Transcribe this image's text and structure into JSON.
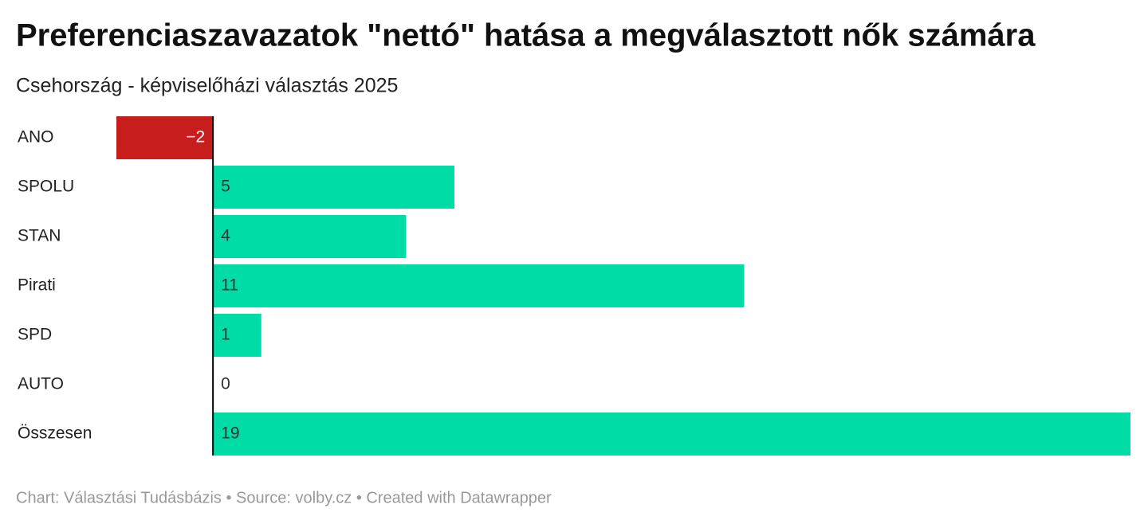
{
  "chart_data": {
    "type": "bar",
    "orientation": "horizontal",
    "title": "Preferenciaszavazatok \"nettó\" hatása a megválasztott nők számára",
    "subtitle": "Csehország - képviselőházi választás 2025",
    "categories": [
      "ANO",
      "SPOLU",
      "STAN",
      "Pirati",
      "SPD",
      "AUTO",
      "Összesen"
    ],
    "values": [
      -2,
      5,
      4,
      11,
      1,
      0,
      19
    ],
    "value_labels": [
      "−2",
      "5",
      "4",
      "11",
      "1",
      "0",
      "19"
    ],
    "color": "#00dca6",
    "negative_color": "#c71e1d",
    "footer": "Chart: Választási Tudásbázis • Source: volby.cz • Created with Datawrapper"
  }
}
